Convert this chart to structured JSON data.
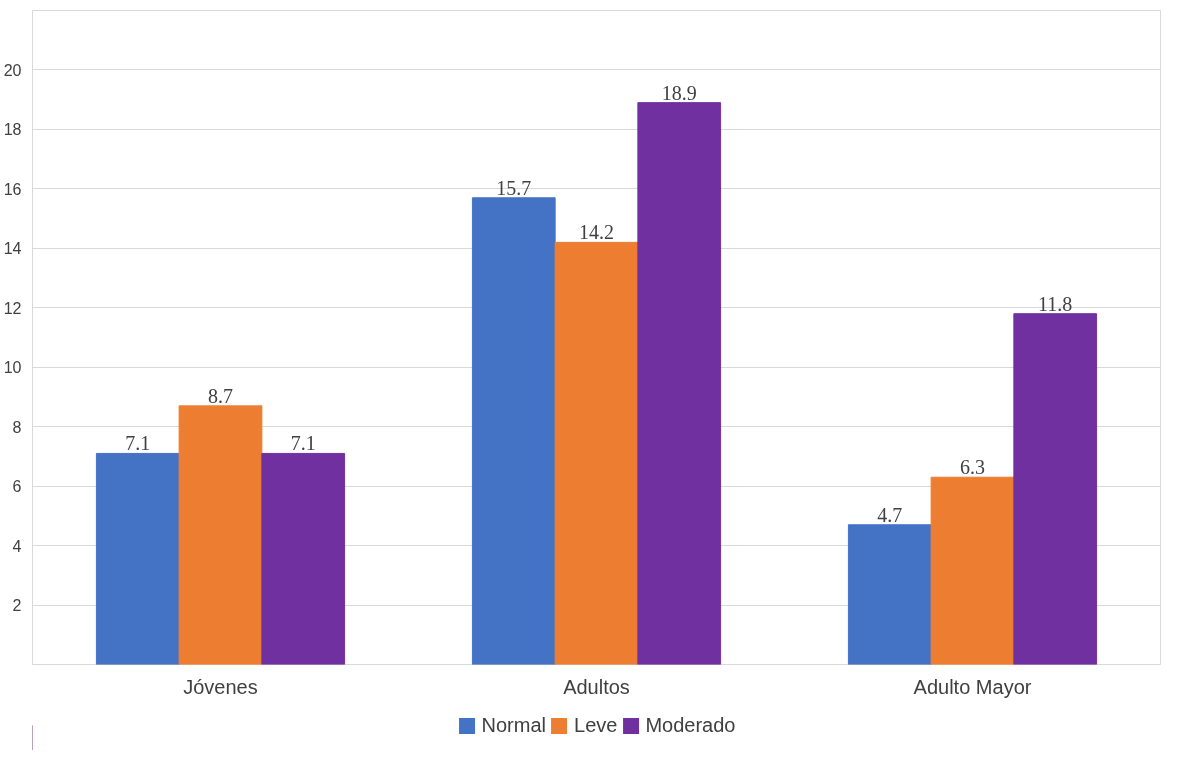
{
  "chart_data": {
    "type": "bar",
    "categories": [
      "Jóvenes",
      "Adultos",
      "Adulto Mayor"
    ],
    "series": [
      {
        "name": "Normal",
        "color": "#4472c4",
        "values": [
          7.1,
          15.7,
          4.7
        ]
      },
      {
        "name": "Leve",
        "color": "#ed7d31",
        "values": [
          8.7,
          14.2,
          6.3
        ]
      },
      {
        "name": "Moderado",
        "color": "#7030a0",
        "values": [
          7.1,
          18.9,
          11.8
        ]
      }
    ],
    "ylim": [
      0,
      22
    ],
    "yticks": [
      {
        "value": 0,
        "label": null
      },
      2,
      4,
      6,
      8,
      10,
      12,
      14,
      16,
      18,
      20,
      {
        "value": 22,
        "label": null
      }
    ],
    "grid": "y",
    "legend": "bottom",
    "data_labels": true
  }
}
